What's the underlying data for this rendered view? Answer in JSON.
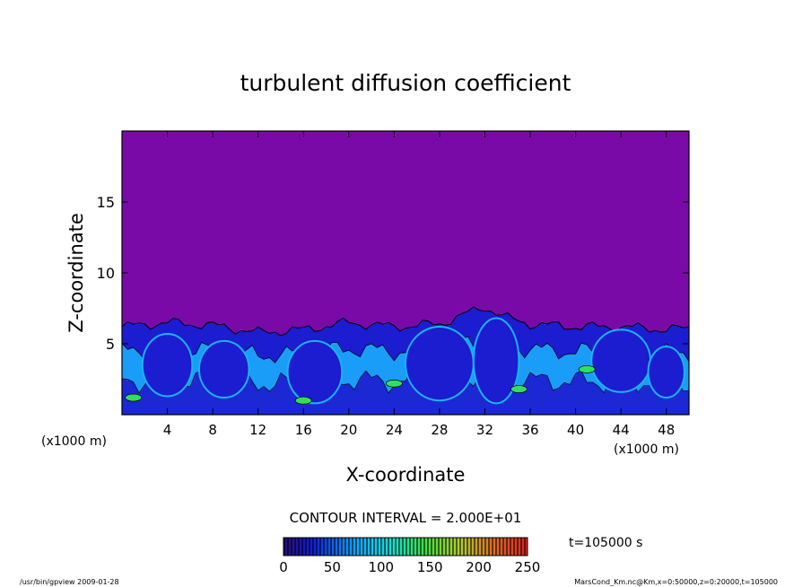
{
  "chart_data": {
    "type": "heatmap",
    "title": "turbulent diffusion coefficient",
    "xlabel": "X-coordinate",
    "ylabel": "Z-coordinate",
    "xlim": [
      0,
      50
    ],
    "ylim": [
      0,
      20
    ],
    "x_unit_left": "(x1000 m)",
    "x_unit_right": "(x1000 m)",
    "x_ticks": [
      4,
      8,
      12,
      16,
      20,
      24,
      28,
      32,
      36,
      40,
      44,
      48
    ],
    "x_tick_labels": [
      "4",
      "8",
      "12",
      "16",
      "20",
      "24",
      "28",
      "32",
      "36",
      "40",
      "44",
      "48"
    ],
    "y_ticks": [
      5,
      10,
      15
    ],
    "y_tick_labels": [
      "5",
      "10",
      "15"
    ],
    "contour_interval": "CONTOUR INTERVAL = 2.000E+01",
    "time_label": "t=105000 s",
    "colorbar": {
      "min": 0,
      "max": 250,
      "ticks": [
        0,
        50,
        100,
        150,
        200,
        250
      ],
      "tick_labels": [
        "0",
        "50",
        "100",
        "150",
        "200",
        "250"
      ]
    },
    "background_value": 0,
    "mixed_layer_top_approx": [
      [
        0,
        6.2
      ],
      [
        4,
        6.5
      ],
      [
        8,
        6.3
      ],
      [
        12,
        5.8
      ],
      [
        16,
        6.0
      ],
      [
        20,
        6.5
      ],
      [
        24,
        6.2
      ],
      [
        28,
        6.4
      ],
      [
        30,
        7.0
      ],
      [
        32,
        7.6
      ],
      [
        34,
        6.8
      ],
      [
        36,
        6.4
      ],
      [
        40,
        6.2
      ],
      [
        44,
        6.2
      ],
      [
        48,
        6.0
      ],
      [
        50,
        6.1
      ]
    ],
    "colors": {
      "background_field": "#7a0aa8",
      "low": "#1c1cd0",
      "mid": "#19b4ff",
      "high": "#30e05c"
    }
  },
  "footer": {
    "left": "/usr/bin/gpview   2009-01-28",
    "right": "MarsCond_Km.nc@Km,x=0:50000,z=0:20000,t=105000"
  }
}
